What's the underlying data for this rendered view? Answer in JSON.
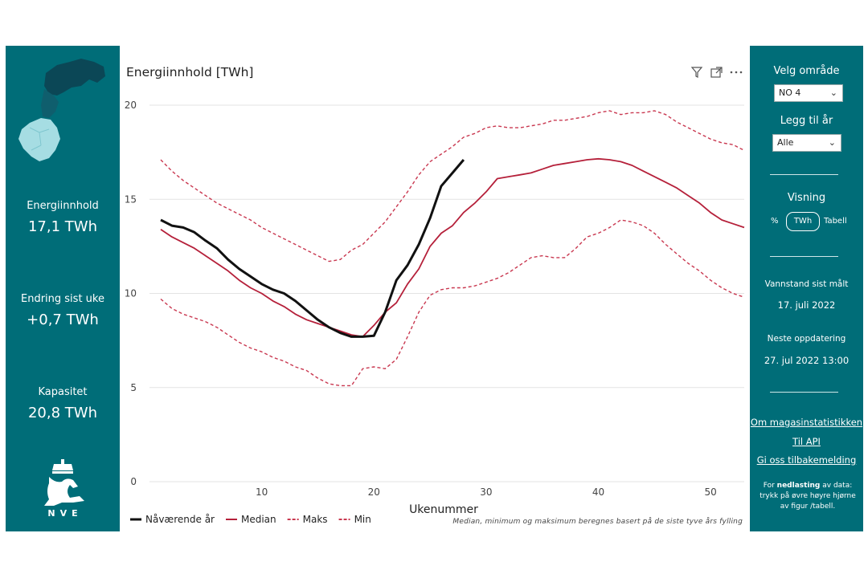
{
  "left_panel": {
    "energy_label": "Energiinnhold",
    "energy_value": "17,1 TWh",
    "change_label": "Endring sist uke",
    "change_value": "+0,7 TWh",
    "capacity_label": "Kapasitet",
    "capacity_value": "20,8 TWh",
    "logo_text": "NVE"
  },
  "right_panel": {
    "area_label": "Velg område",
    "area_value": "NO 4",
    "year_label": "Legg til år",
    "year_value": "Alle",
    "view_label": "Visning",
    "view_percent": "%",
    "view_twh": "TWh",
    "view_table": "Tabell",
    "measured_label": "Vannstand sist målt",
    "measured_value": "17. juli 2022",
    "next_label": "Neste oppdatering",
    "next_value": "27. jul 2022 13:00",
    "link_about": "Om magasinstatistikken",
    "link_api": "Til API",
    "link_feedback": "Gi oss tilbakemelding",
    "note_prefix": "For ",
    "note_bold": "nedlasting",
    "note_rest": " av data: trykk på øvre høyre hjørne av figur /tabell."
  },
  "chart_data": {
    "type": "line",
    "title": "Energiinnhold [TWh]",
    "xlabel": "Ukenummer",
    "ylabel": "",
    "xlim": [
      0,
      53
    ],
    "ylim": [
      0,
      20
    ],
    "x_ticks": [
      10,
      20,
      30,
      40,
      50
    ],
    "y_ticks": [
      0,
      5,
      10,
      15,
      20
    ],
    "footnote": "Median, minimum og maksimum beregnes basert på de siste tyve års fylling",
    "colors": {
      "current": "#111111",
      "median": "#b5203a",
      "band": "#c93850"
    },
    "series": [
      {
        "name": "Nåværende år",
        "style": "solid-thick",
        "x": [
          1,
          2,
          3,
          4,
          5,
          6,
          7,
          8,
          9,
          10,
          11,
          12,
          13,
          14,
          15,
          16,
          17,
          18,
          19,
          20,
          21,
          22,
          23,
          24,
          25,
          26,
          27,
          28
        ],
        "y": [
          13.9,
          13.6,
          13.5,
          13.25,
          12.8,
          12.4,
          11.8,
          11.3,
          10.9,
          10.5,
          10.2,
          10.0,
          9.6,
          9.1,
          8.6,
          8.2,
          7.9,
          7.7,
          7.7,
          7.75,
          9.0,
          10.7,
          11.5,
          12.6,
          14.0,
          15.7,
          16.4,
          17.1
        ]
      },
      {
        "name": "Median",
        "style": "solid",
        "x": [
          1,
          2,
          3,
          4,
          5,
          6,
          7,
          8,
          9,
          10,
          11,
          12,
          13,
          14,
          15,
          16,
          17,
          18,
          19,
          20,
          21,
          22,
          23,
          24,
          25,
          26,
          27,
          28,
          29,
          30,
          31,
          32,
          33,
          34,
          35,
          36,
          37,
          38,
          39,
          40,
          41,
          42,
          43,
          44,
          45,
          46,
          47,
          48,
          49,
          50,
          51,
          52,
          53
        ],
        "y": [
          13.4,
          13.0,
          12.7,
          12.4,
          12.0,
          11.6,
          11.2,
          10.7,
          10.3,
          10.0,
          9.6,
          9.3,
          8.9,
          8.6,
          8.4,
          8.2,
          8.0,
          7.8,
          7.7,
          8.3,
          9.0,
          9.5,
          10.5,
          11.3,
          12.5,
          13.2,
          13.6,
          14.3,
          14.8,
          15.4,
          16.1,
          16.2,
          16.3,
          16.4,
          16.6,
          16.8,
          16.9,
          17.0,
          17.1,
          17.15,
          17.1,
          17.0,
          16.8,
          16.5,
          16.2,
          15.9,
          15.6,
          15.2,
          14.8,
          14.3,
          13.9,
          13.7,
          13.5
        ]
      },
      {
        "name": "Maks",
        "style": "dashed",
        "x": [
          1,
          2,
          3,
          4,
          5,
          6,
          7,
          8,
          9,
          10,
          11,
          12,
          13,
          14,
          15,
          16,
          17,
          18,
          19,
          20,
          21,
          22,
          23,
          24,
          25,
          26,
          27,
          28,
          29,
          30,
          31,
          32,
          33,
          34,
          35,
          36,
          37,
          38,
          39,
          40,
          41,
          42,
          43,
          44,
          45,
          46,
          47,
          48,
          49,
          50,
          51,
          52,
          53
        ],
        "y": [
          17.1,
          16.5,
          16.0,
          15.6,
          15.2,
          14.8,
          14.5,
          14.2,
          13.9,
          13.5,
          13.2,
          12.9,
          12.6,
          12.3,
          12.0,
          11.7,
          11.8,
          12.3,
          12.6,
          13.2,
          13.8,
          14.6,
          15.4,
          16.3,
          17.0,
          17.4,
          17.8,
          18.3,
          18.5,
          18.8,
          18.9,
          18.8,
          18.8,
          18.9,
          19.0,
          19.2,
          19.2,
          19.3,
          19.4,
          19.6,
          19.7,
          19.5,
          19.6,
          19.6,
          19.7,
          19.5,
          19.1,
          18.8,
          18.5,
          18.2,
          18.0,
          17.9,
          17.6
        ]
      },
      {
        "name": "Min",
        "style": "dashed",
        "x": [
          1,
          2,
          3,
          4,
          5,
          6,
          7,
          8,
          9,
          10,
          11,
          12,
          13,
          14,
          15,
          16,
          17,
          18,
          19,
          20,
          21,
          22,
          23,
          24,
          25,
          26,
          27,
          28,
          29,
          30,
          31,
          32,
          33,
          34,
          35,
          36,
          37,
          38,
          39,
          40,
          41,
          42,
          43,
          44,
          45,
          46,
          47,
          48,
          49,
          50,
          51,
          52,
          53
        ],
        "y": [
          9.7,
          9.2,
          8.9,
          8.7,
          8.5,
          8.2,
          7.8,
          7.4,
          7.1,
          6.9,
          6.6,
          6.4,
          6.1,
          5.9,
          5.5,
          5.2,
          5.1,
          5.1,
          6.0,
          6.1,
          6.0,
          6.5,
          7.7,
          9.0,
          9.9,
          10.2,
          10.3,
          10.3,
          10.4,
          10.6,
          10.8,
          11.1,
          11.5,
          11.9,
          12.0,
          11.9,
          11.9,
          12.4,
          13.0,
          13.2,
          13.5,
          13.9,
          13.8,
          13.6,
          13.2,
          12.6,
          12.1,
          11.6,
          11.2,
          10.7,
          10.3,
          10.0,
          9.8
        ]
      }
    ]
  }
}
